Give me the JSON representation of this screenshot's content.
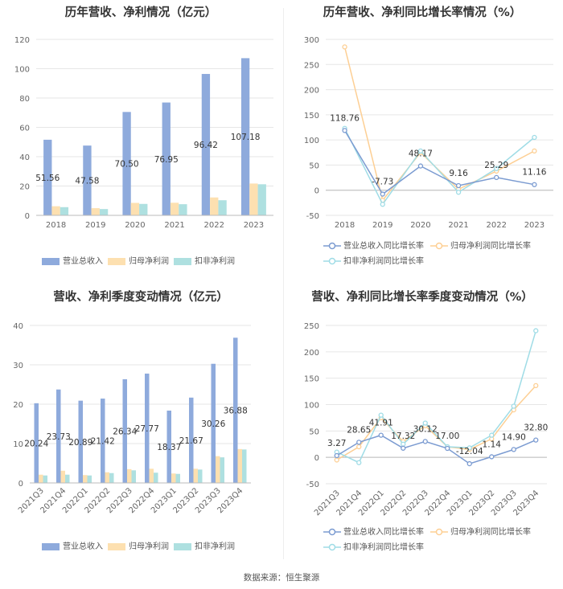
{
  "colors": {
    "revenue": "#8eaadc",
    "net_profit": "#fde0b0",
    "deducted_profit": "#aee0e0",
    "l_revenue": "#7b9bd1",
    "l_net": "#fdcf94",
    "l_deducted": "#9fdce6",
    "grid": "#e6e6e6",
    "axis": "#bbbbbb",
    "tick": "#666666",
    "label": "#333333"
  },
  "footer": "数据来源：恒生聚源",
  "chart_data": [
    {
      "type": "bar",
      "title": "历年营收、净利情况（亿元）",
      "categories": [
        "2018",
        "2019",
        "2020",
        "2021",
        "2022",
        "2023"
      ],
      "ylim": [
        0,
        120
      ],
      "yticks": [
        0,
        20,
        40,
        60,
        80,
        100,
        120
      ],
      "series": [
        {
          "name": "营业总收入",
          "values": [
            51.56,
            47.58,
            70.5,
            76.95,
            96.42,
            107.18
          ],
          "labels": [
            "51.56",
            "47.58",
            "70.50",
            "76.95",
            "96.42",
            "107.18"
          ]
        },
        {
          "name": "归母净利润",
          "values": [
            6.2,
            4.9,
            8.5,
            8.6,
            12.2,
            21.7
          ]
        },
        {
          "name": "扣非净利润",
          "values": [
            5.6,
            4.3,
            7.8,
            7.6,
            10.3,
            21.2
          ]
        }
      ]
    },
    {
      "type": "line",
      "title": "历年营收、净利同比增长率情况（%）",
      "categories": [
        "2018",
        "2019",
        "2020",
        "2021",
        "2022",
        "2023"
      ],
      "ylim": [
        -50,
        300
      ],
      "yticks": [
        -50,
        0,
        50,
        100,
        150,
        200,
        250,
        300
      ],
      "series": [
        {
          "name": "营业总收入同比增长率",
          "values": [
            118.76,
            -7.73,
            48.17,
            9.16,
            25.29,
            11.16
          ],
          "labels": [
            "118.76",
            "-7.73",
            "48.17",
            "9.16",
            "25.29",
            "11.16"
          ]
        },
        {
          "name": "归母净利润同比增长率",
          "values": [
            285,
            -20,
            75,
            2,
            38,
            78
          ]
        },
        {
          "name": "扣非净利润同比增长率",
          "values": [
            123,
            -28,
            78,
            -4,
            43,
            105
          ]
        }
      ]
    },
    {
      "type": "bar",
      "title": "营收、净利季度变动情况（亿元）",
      "categories": [
        "2021Q3",
        "2021Q4",
        "2022Q1",
        "2022Q2",
        "2022Q3",
        "2022Q4",
        "2023Q1",
        "2023Q2",
        "2023Q3",
        "2023Q4"
      ],
      "ylim": [
        0,
        40
      ],
      "yticks": [
        0,
        10,
        20,
        30,
        40
      ],
      "series": [
        {
          "name": "营业总收入",
          "values": [
            20.24,
            23.73,
            20.89,
            21.42,
            26.34,
            27.77,
            18.37,
            21.67,
            30.26,
            36.88
          ],
          "labels": [
            "20.24",
            "23.73",
            "20.89",
            "21.42",
            "26.34",
            "27.77",
            "18.37",
            "21.67",
            "30.26",
            "36.88"
          ]
        },
        {
          "name": "归母净利润",
          "values": [
            2.1,
            3.1,
            2.0,
            2.7,
            3.5,
            3.6,
            2.4,
            3.6,
            6.8,
            8.6
          ]
        },
        {
          "name": "扣非净利润",
          "values": [
            1.9,
            2.1,
            1.9,
            2.5,
            3.2,
            2.6,
            2.3,
            3.4,
            6.5,
            8.5
          ]
        }
      ]
    },
    {
      "type": "line",
      "title": "营收、净利同比增长率季度变动情况（%）",
      "categories": [
        "2021Q3",
        "2021Q4",
        "2022Q1",
        "2022Q2",
        "2022Q3",
        "2022Q4",
        "2023Q1",
        "2023Q2",
        "2023Q3",
        "2023Q4"
      ],
      "ylim": [
        -50,
        250
      ],
      "yticks": [
        -50,
        0,
        50,
        100,
        150,
        200,
        250
      ],
      "series": [
        {
          "name": "营业总收入同比增长率",
          "values": [
            3.27,
            28.65,
            41.91,
            17.32,
            30.12,
            17.0,
            -12.04,
            1.14,
            14.9,
            32.8
          ],
          "labels": [
            "3.27",
            "28.65",
            "41.91",
            "17.32",
            "30.12",
            "17.00",
            "-12.04",
            "1.14",
            "14.90",
            "32.80"
          ]
        },
        {
          "name": "归母净利润同比增长率",
          "values": [
            -5,
            20,
            75,
            30,
            60,
            20,
            15,
            35,
            90,
            136
          ]
        },
        {
          "name": "扣非净利润同比增长率",
          "values": [
            10,
            -10,
            80,
            25,
            65,
            20,
            18,
            42,
            97,
            240
          ]
        }
      ]
    }
  ]
}
